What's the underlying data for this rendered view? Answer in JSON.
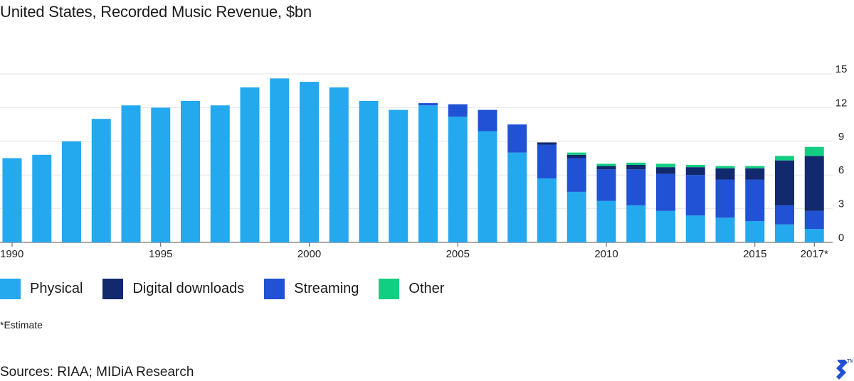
{
  "title": "United States, Recorded Music Revenue, $bn",
  "note": "*Estimate",
  "sources": "Sources: RIAA; MIDiA Research",
  "logo_icon": "toptal-logo-icon",
  "legend": [
    {
      "label": "Physical",
      "color": "#25a9ee"
    },
    {
      "label": "Digital downloads",
      "color": "#13296e"
    },
    {
      "label": "Streaming",
      "color": "#2151d4"
    },
    {
      "label": "Other",
      "color": "#11cf82"
    }
  ],
  "chart_data": {
    "type": "bar",
    "stacked": true,
    "title": "United States, Recorded Music Revenue, $bn",
    "categories": [
      "1990",
      "1991",
      "1992",
      "1993",
      "1994",
      "1995",
      "1996",
      "1997",
      "1998",
      "1999",
      "2000",
      "2001",
      "2002",
      "2003",
      "2004",
      "2005",
      "2006",
      "2007",
      "2008",
      "2009",
      "2010",
      "2011",
      "2012",
      "2013",
      "2014",
      "2015",
      "2016",
      "2017"
    ],
    "x_tick_labels": [
      {
        "category": "1990",
        "label": "1990"
      },
      {
        "category": "1995",
        "label": "1995"
      },
      {
        "category": "2000",
        "label": "2000"
      },
      {
        "category": "2005",
        "label": "2005"
      },
      {
        "category": "2010",
        "label": "2010"
      },
      {
        "category": "2015",
        "label": "2015"
      },
      {
        "category": "2017",
        "label": "2017*"
      }
    ],
    "y_ticks": [
      0,
      3,
      6,
      9,
      12,
      15
    ],
    "ylim": [
      0,
      15
    ],
    "grid": true,
    "legend_position": "bottom",
    "series": [
      {
        "name": "Physical",
        "color": "#25a9ee",
        "values": [
          7.5,
          7.8,
          9.0,
          11.0,
          12.2,
          12.0,
          12.6,
          12.2,
          13.8,
          14.6,
          14.3,
          13.8,
          12.6,
          11.8,
          12.2,
          11.2,
          9.9,
          8.0,
          5.7,
          4.5,
          3.7,
          3.3,
          2.8,
          2.4,
          2.2,
          1.9,
          1.6,
          1.2
        ]
      },
      {
        "name": "Streaming",
        "color": "#2151d4",
        "values": [
          0,
          0,
          0,
          0,
          0,
          0,
          0,
          0,
          0,
          0,
          0,
          0,
          0,
          0,
          0.2,
          1.1,
          1.9,
          2.5,
          3.0,
          3.0,
          2.8,
          3.2,
          3.3,
          3.6,
          3.4,
          3.7,
          1.7,
          1.6
        ]
      },
      {
        "name": "Digital downloads",
        "color": "#13296e",
        "values": [
          0,
          0,
          0,
          0,
          0,
          0,
          0,
          0,
          0,
          0,
          0,
          0,
          0,
          0,
          0,
          0,
          0,
          0,
          0.2,
          0.3,
          0.3,
          0.4,
          0.6,
          0.7,
          1.0,
          1.0,
          4.0,
          4.9
        ]
      },
      {
        "name": "Other",
        "color": "#11cf82",
        "values": [
          0,
          0,
          0,
          0,
          0,
          0,
          0,
          0,
          0,
          0,
          0,
          0,
          0,
          0,
          0,
          0,
          0,
          0,
          0,
          0.2,
          0.2,
          0.2,
          0.3,
          0.2,
          0.2,
          0.2,
          0.4,
          0.8
        ]
      }
    ]
  }
}
